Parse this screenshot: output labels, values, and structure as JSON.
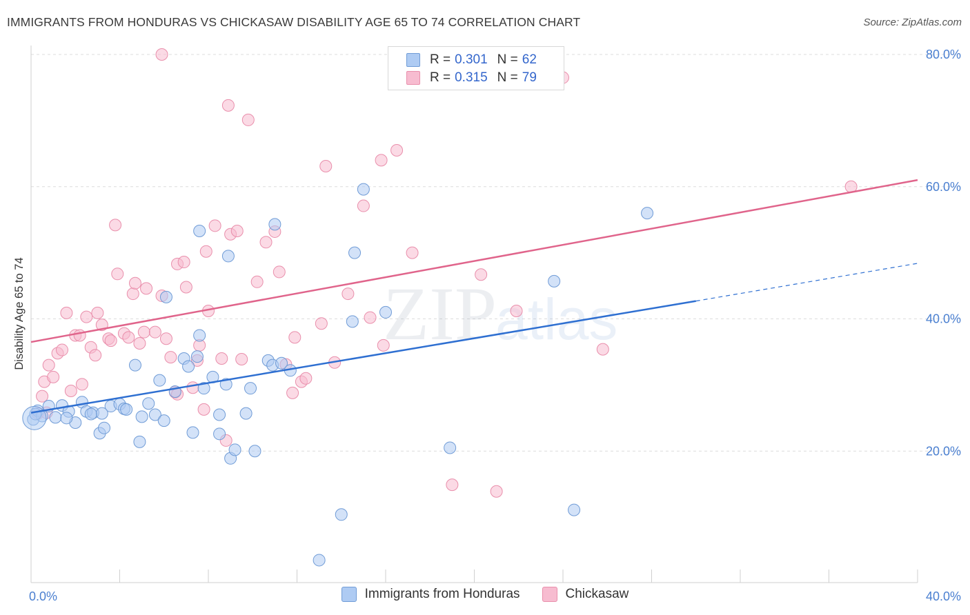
{
  "title": "IMMIGRANTS FROM HONDURAS VS CHICKASAW DISABILITY AGE 65 TO 74 CORRELATION CHART",
  "source": "Source: ZipAtlas.com",
  "watermark": {
    "zip": "ZIP",
    "atlas": "atlas"
  },
  "colors": {
    "blue_fill": "#aecbf3",
    "blue_stroke": "#6f9bd6",
    "blue_line": "#2e6fd1",
    "pink_fill": "#f7bcd0",
    "pink_stroke": "#e98eab",
    "pink_line": "#e0648b",
    "tick_label": "#4a7fd0",
    "grid": "#dcdcdc"
  },
  "legend_top": [
    {
      "r_label": "R =",
      "r_value": "0.301",
      "n_label": "N =",
      "n_value": "62"
    },
    {
      "r_label": "R =",
      "r_value": "0.315",
      "n_label": "N =",
      "n_value": "79"
    }
  ],
  "legend_bottom": [
    "Immigrants from Honduras",
    "Chickasaw"
  ],
  "chart_data": {
    "type": "scatter",
    "title": "IMMIGRANTS FROM HONDURAS VS CHICKASAW DISABILITY AGE 65 TO 74 CORRELATION CHART",
    "xlabel": "",
    "ylabel": "Disability Age 65 to 74",
    "xlim": [
      0,
      40
    ],
    "ylim": [
      0,
      80
    ],
    "x_tick_labels": [
      "0.0%",
      "40.0%"
    ],
    "y_ticks": [
      20,
      40,
      60,
      80
    ],
    "y_tick_labels": [
      "20.0%",
      "40.0%",
      "60.0%",
      "80.0%"
    ],
    "grid": true,
    "legend_position": "top-center",
    "series": [
      {
        "name": "Immigrants from Honduras",
        "R": 0.301,
        "N": 62,
        "trend": {
          "x0": 0,
          "y0": 25.8,
          "x1": 30,
          "y1": 42.7,
          "dashed_to_x": 40,
          "dashed_to_y": 48.4
        },
        "points": [
          [
            0.1,
            24.8
          ],
          [
            0.3,
            26.1
          ],
          [
            0.5,
            25.3
          ],
          [
            0.8,
            26.8
          ],
          [
            1.1,
            25.1
          ],
          [
            1.4,
            26.9
          ],
          [
            1.7,
            26.0
          ],
          [
            2.0,
            24.3
          ],
          [
            2.3,
            27.4
          ],
          [
            2.5,
            26.0
          ],
          [
            2.8,
            25.8
          ],
          [
            3.1,
            22.7
          ],
          [
            3.3,
            23.5
          ],
          [
            3.6,
            26.8
          ],
          [
            4.0,
            27.1
          ],
          [
            4.2,
            26.4
          ],
          [
            4.7,
            33.0
          ],
          [
            4.9,
            21.4
          ],
          [
            5.0,
            25.2
          ],
          [
            5.3,
            27.2
          ],
          [
            5.6,
            25.5
          ],
          [
            5.8,
            30.7
          ],
          [
            6.0,
            24.6
          ],
          [
            6.1,
            43.3
          ],
          [
            6.5,
            29.0
          ],
          [
            6.9,
            34.0
          ],
          [
            7.1,
            32.8
          ],
          [
            7.3,
            22.8
          ],
          [
            7.5,
            34.3
          ],
          [
            7.6,
            37.5
          ],
          [
            7.8,
            29.5
          ],
          [
            7.6,
            53.3
          ],
          [
            8.2,
            31.2
          ],
          [
            8.5,
            25.5
          ],
          [
            8.5,
            22.6
          ],
          [
            8.8,
            30.1
          ],
          [
            8.9,
            49.5
          ],
          [
            9.0,
            18.9
          ],
          [
            9.2,
            20.2
          ],
          [
            9.7,
            25.7
          ],
          [
            9.9,
            29.5
          ],
          [
            10.1,
            20.0
          ],
          [
            10.7,
            33.7
          ],
          [
            10.9,
            33.0
          ],
          [
            11.0,
            54.3
          ],
          [
            11.3,
            33.3
          ],
          [
            11.7,
            32.2
          ],
          [
            14.0,
            10.4
          ],
          [
            14.5,
            39.6
          ],
          [
            14.6,
            50.0
          ],
          [
            15.0,
            59.6
          ],
          [
            16.0,
            41.0
          ],
          [
            13.0,
            3.5
          ],
          [
            18.9,
            20.5
          ],
          [
            23.6,
            45.7
          ],
          [
            24.5,
            11.1
          ],
          [
            27.8,
            56.0
          ],
          [
            0.2,
            25.6
          ],
          [
            1.6,
            25.0
          ],
          [
            3.2,
            25.7
          ],
          [
            4.3,
            26.3
          ],
          [
            2.7,
            25.6
          ]
        ]
      },
      {
        "name": "Chickasaw",
        "R": 0.315,
        "N": 79,
        "trend": {
          "x0": 0,
          "y0": 36.5,
          "x1": 40,
          "y1": 61.0
        },
        "points": [
          [
            0.3,
            25.7
          ],
          [
            0.5,
            28.3
          ],
          [
            0.6,
            30.5
          ],
          [
            0.8,
            33.0
          ],
          [
            1.0,
            31.2
          ],
          [
            1.2,
            34.8
          ],
          [
            1.4,
            35.3
          ],
          [
            1.6,
            40.9
          ],
          [
            1.8,
            29.1
          ],
          [
            2.0,
            37.5
          ],
          [
            2.2,
            37.5
          ],
          [
            2.3,
            30.1
          ],
          [
            2.5,
            40.3
          ],
          [
            2.7,
            35.7
          ],
          [
            2.9,
            34.5
          ],
          [
            3.0,
            40.9
          ],
          [
            3.2,
            39.1
          ],
          [
            3.5,
            37.0
          ],
          [
            3.6,
            36.7
          ],
          [
            3.8,
            54.2
          ],
          [
            3.9,
            46.8
          ],
          [
            4.2,
            37.8
          ],
          [
            4.4,
            37.2
          ],
          [
            4.6,
            43.8
          ],
          [
            4.7,
            45.4
          ],
          [
            4.9,
            36.3
          ],
          [
            5.1,
            38.0
          ],
          [
            5.2,
            44.6
          ],
          [
            5.6,
            38.0
          ],
          [
            5.9,
            43.5
          ],
          [
            6.1,
            37.0
          ],
          [
            6.3,
            34.2
          ],
          [
            6.5,
            28.9
          ],
          [
            6.6,
            48.3
          ],
          [
            6.9,
            48.6
          ],
          [
            7.0,
            44.8
          ],
          [
            7.3,
            29.6
          ],
          [
            7.5,
            33.7
          ],
          [
            7.6,
            36.0
          ],
          [
            7.8,
            26.3
          ],
          [
            7.9,
            50.2
          ],
          [
            8.0,
            41.2
          ],
          [
            8.3,
            54.1
          ],
          [
            8.6,
            34.0
          ],
          [
            8.8,
            21.6
          ],
          [
            8.9,
            72.3
          ],
          [
            9.0,
            52.8
          ],
          [
            9.3,
            53.3
          ],
          [
            9.5,
            33.9
          ],
          [
            9.8,
            70.1
          ],
          [
            10.2,
            45.6
          ],
          [
            10.6,
            51.6
          ],
          [
            11.0,
            53.2
          ],
          [
            11.2,
            47.1
          ],
          [
            11.5,
            33.1
          ],
          [
            11.8,
            28.8
          ],
          [
            11.9,
            37.2
          ],
          [
            12.2,
            30.5
          ],
          [
            12.4,
            31.0
          ],
          [
            13.1,
            39.3
          ],
          [
            13.3,
            63.1
          ],
          [
            13.7,
            33.4
          ],
          [
            14.3,
            43.8
          ],
          [
            15.0,
            57.1
          ],
          [
            15.3,
            40.2
          ],
          [
            15.8,
            64.0
          ],
          [
            15.9,
            36.0
          ],
          [
            16.5,
            65.5
          ],
          [
            17.2,
            50.0
          ],
          [
            19.0,
            14.9
          ],
          [
            20.3,
            46.7
          ],
          [
            21.0,
            13.9
          ],
          [
            21.9,
            41.2
          ],
          [
            24.0,
            76.5
          ],
          [
            25.8,
            35.4
          ],
          [
            37.0,
            60.0
          ],
          [
            5.9,
            80.0
          ],
          [
            6.6,
            28.6
          ],
          [
            0.7,
            25.8
          ]
        ]
      }
    ]
  }
}
